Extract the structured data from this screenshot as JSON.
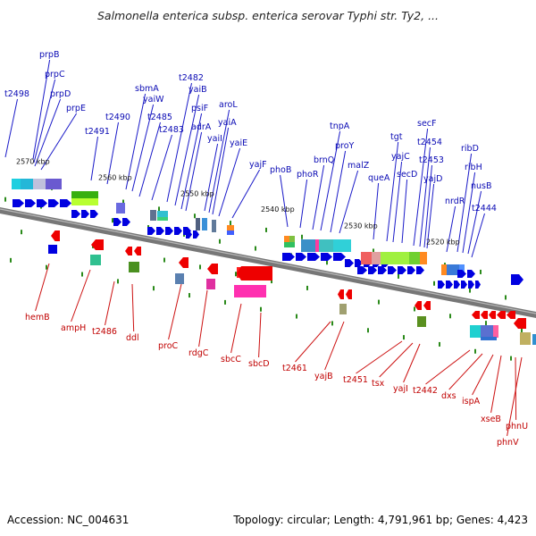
{
  "title": "Salmonella enterica subsp. enterica serovar Typhi str. Ty2, ...",
  "footer": {
    "accession": "Accession: NC_004631",
    "topology": "Topology: circular; Length: 4,791,961 bp; Genes: 4,423"
  },
  "colors": {
    "forward": "#0000e0",
    "reverse": "#ee0000",
    "backbone": "#777777",
    "tick": "#2a8a1a"
  },
  "scale_labels": [
    "2570 kbp",
    "2560 kbp",
    "2550 kbp",
    "2540 kbp",
    "2530 kbp",
    "2520 kbp"
  ],
  "top_genes": [
    "t2498",
    "prpB",
    "prpC",
    "prpD",
    "prpE",
    "t2491",
    "t2490",
    "sbmA",
    "yaiW",
    "t2485",
    "t2483",
    "t2482",
    "yaiB",
    "psiF",
    "adrA",
    "yaiI",
    "aroL",
    "yaiA",
    "yaiE",
    "yajF",
    "phoB",
    "phoR",
    "brnQ",
    "tnpA",
    "proY",
    "malZ",
    "queA",
    "tgt",
    "yajC",
    "secD",
    "secF",
    "t2454",
    "t2453",
    "yajD",
    "nrdR",
    "ribD",
    "ribH",
    "nusB",
    "t2444"
  ],
  "bottom_genes": [
    "hemB",
    "ampH",
    "t2486",
    "ddl",
    "proC",
    "rdgC",
    "sbcC",
    "sbcD",
    "t2461",
    "yajB",
    "t2451",
    "tsx",
    "yajI",
    "t2442",
    "dxs",
    "ispA",
    "xseB",
    "phnU",
    "phnV"
  ]
}
